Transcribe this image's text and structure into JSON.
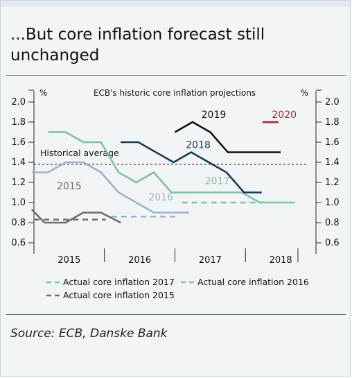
{
  "title": "...But core inflation forecast still unchanged",
  "source": "Source: ECB, Danske Bank",
  "chart_data": {
    "type": "line",
    "title": "ECB's historic core inflation projections",
    "ylabel_left": "%",
    "ylabel_right": "%",
    "ylim": [
      0.6,
      2.0
    ],
    "yticks": [
      "0.6",
      "0.8",
      "1.0",
      "1.2",
      "1.4",
      "1.6",
      "1.8",
      "2.0"
    ],
    "xlim": [
      2014.5,
      2018.5
    ],
    "x_labels": [
      {
        "label": "2015",
        "x": 2015.0
      },
      {
        "label": "2016",
        "x": 2016.0
      },
      {
        "label": "2017",
        "x": 2017.0
      },
      {
        "label": "2018",
        "x": 2018.0
      }
    ],
    "x_dividers": [
      2015.5,
      2016.5,
      2017.5
    ],
    "grid": false,
    "legend_position": "bottom",
    "reference_lines": [
      {
        "name": "Historical average",
        "y": 1.38,
        "color": "#111111"
      }
    ],
    "projections": [
      {
        "name": "2015",
        "color": "#6b6e70",
        "label_at": [
          2015.0,
          1.16
        ],
        "points": [
          [
            2014.47,
            0.93
          ],
          [
            2014.65,
            0.8
          ],
          [
            2014.95,
            0.8
          ],
          [
            2015.2,
            0.9
          ],
          [
            2015.45,
            0.9
          ],
          [
            2015.73,
            0.8
          ]
        ]
      },
      {
        "name": "2016",
        "color": "#9bb3c9",
        "label_at": [
          2016.3,
          1.05
        ],
        "points": [
          [
            2014.47,
            1.3
          ],
          [
            2014.7,
            1.3
          ],
          [
            2014.95,
            1.4
          ],
          [
            2015.2,
            1.4
          ],
          [
            2015.45,
            1.3
          ],
          [
            2015.7,
            1.1
          ],
          [
            2015.95,
            1.0
          ],
          [
            2016.2,
            0.9
          ],
          [
            2016.45,
            0.9
          ],
          [
            2016.7,
            0.9
          ]
        ]
      },
      {
        "name": "2017",
        "color": "#7fbfaa",
        "label_at": [
          2017.1,
          1.21
        ],
        "points": [
          [
            2014.7,
            1.7
          ],
          [
            2014.95,
            1.7
          ],
          [
            2015.2,
            1.6
          ],
          [
            2015.45,
            1.6
          ],
          [
            2015.7,
            1.3
          ],
          [
            2015.95,
            1.2
          ],
          [
            2016.2,
            1.3
          ],
          [
            2016.45,
            1.1
          ],
          [
            2016.7,
            1.1
          ],
          [
            2016.95,
            1.1
          ],
          [
            2017.2,
            1.1
          ],
          [
            2017.45,
            1.1
          ],
          [
            2017.7,
            1.0
          ],
          [
            2017.95,
            1.0
          ],
          [
            2018.2,
            1.0
          ]
        ]
      },
      {
        "name": "2018",
        "color": "#143a5c",
        "label_at": [
          2016.83,
          1.57
        ],
        "points": [
          [
            2015.73,
            1.6
          ],
          [
            2015.98,
            1.6
          ],
          [
            2016.23,
            1.5
          ],
          [
            2016.48,
            1.4
          ],
          [
            2016.73,
            1.5
          ],
          [
            2016.98,
            1.4
          ],
          [
            2017.23,
            1.3
          ],
          [
            2017.48,
            1.1
          ],
          [
            2017.73,
            1.1
          ]
        ]
      },
      {
        "name": "2019",
        "color": "#111111",
        "label_at": [
          2017.05,
          1.87
        ],
        "points": [
          [
            2016.5,
            1.7
          ],
          [
            2016.75,
            1.8
          ],
          [
            2017.0,
            1.7
          ],
          [
            2017.25,
            1.5
          ],
          [
            2017.5,
            1.5
          ],
          [
            2017.75,
            1.5
          ],
          [
            2018.0,
            1.5
          ]
        ]
      },
      {
        "name": "2020",
        "color": "#b22222",
        "label_at": [
          2018.05,
          1.87
        ],
        "points": [
          [
            2017.74,
            1.8
          ],
          [
            2017.97,
            1.8
          ]
        ]
      }
    ],
    "actuals": [
      {
        "name": "Actual core inflation 2015",
        "legend": "Actual core inflation 2015",
        "color": "#6b6e70",
        "y": 0.83,
        "from": 2014.5,
        "to": 2015.52
      },
      {
        "name": "Actual core inflation 2016",
        "legend": "Actual core inflation 2016",
        "color": "#9bb3c9",
        "y": 0.86,
        "from": 2015.6,
        "to": 2016.53
      },
      {
        "name": "Actual core inflation 2017",
        "legend": "Actual core inflation 2017",
        "color": "#7fbfaa",
        "y": 1.0,
        "from": 2016.6,
        "to": 2017.78
      }
    ],
    "legend": [
      {
        "label": "Actual core inflation 2017",
        "color": "#7fbfaa"
      },
      {
        "label": "Actual core inflation 2016",
        "color": "#9bb3c9"
      },
      {
        "label": "Actual core inflation 2015",
        "color": "#6b6e70"
      }
    ]
  }
}
